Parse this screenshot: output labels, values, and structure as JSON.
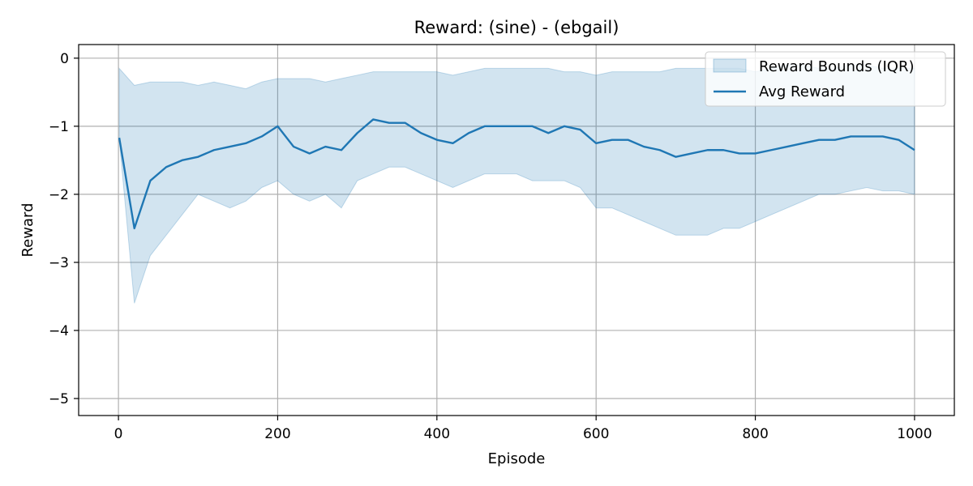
{
  "chart_data": {
    "type": "line",
    "title": "Reward: (sine) - (ebgail)",
    "xlabel": "Episode",
    "ylabel": "Reward",
    "xlim": [
      -50,
      1050
    ],
    "ylim": [
      -5.25,
      0.2
    ],
    "xticks": [
      0,
      200,
      400,
      600,
      800,
      1000
    ],
    "xtick_labels": [
      "0",
      "200",
      "400",
      "600",
      "800",
      "1000"
    ],
    "yticks": [
      0,
      -1,
      -2,
      -3,
      -4,
      -5
    ],
    "ytick_labels": [
      "0",
      "−1",
      "−2",
      "−3",
      "−4",
      "−5"
    ],
    "grid": true,
    "legend_position": "top-right",
    "colors": {
      "line": "#1f77b4",
      "band_fill": "#1f77b4",
      "grid": "#b0b0b0"
    },
    "x": [
      1,
      20,
      40,
      60,
      80,
      100,
      120,
      140,
      160,
      180,
      200,
      220,
      240,
      260,
      280,
      300,
      320,
      340,
      360,
      380,
      400,
      420,
      440,
      460,
      480,
      500,
      520,
      540,
      560,
      580,
      600,
      620,
      640,
      660,
      680,
      700,
      720,
      740,
      760,
      780,
      800,
      820,
      840,
      860,
      880,
      900,
      920,
      940,
      960,
      980,
      1000
    ],
    "series": [
      {
        "name": "Avg Reward",
        "kind": "line",
        "values": [
          -1.17,
          -2.5,
          -1.8,
          -1.6,
          -1.5,
          -1.45,
          -1.35,
          -1.3,
          -1.25,
          -1.15,
          -1.0,
          -1.3,
          -1.4,
          -1.3,
          -1.35,
          -1.1,
          -0.9,
          -0.95,
          -0.95,
          -1.1,
          -1.2,
          -1.25,
          -1.1,
          -1.0,
          -1.0,
          -1.0,
          -1.0,
          -1.1,
          -1.0,
          -1.05,
          -1.25,
          -1.2,
          -1.2,
          -1.3,
          -1.35,
          -1.45,
          -1.4,
          -1.35,
          -1.35,
          -1.4,
          -1.4,
          -1.35,
          -1.3,
          -1.25,
          -1.2,
          -1.2,
          -1.15,
          -1.15,
          -1.15,
          -1.2,
          -1.35
        ]
      },
      {
        "name": "Reward Bounds (IQR)",
        "kind": "band",
        "lower": [
          -1.2,
          -3.6,
          -2.9,
          -2.6,
          -2.3,
          -2.0,
          -2.1,
          -2.2,
          -2.1,
          -1.9,
          -1.8,
          -2.0,
          -2.1,
          -2.0,
          -2.2,
          -1.8,
          -1.7,
          -1.6,
          -1.6,
          -1.7,
          -1.8,
          -1.9,
          -1.8,
          -1.7,
          -1.7,
          -1.7,
          -1.8,
          -1.8,
          -1.8,
          -1.9,
          -2.2,
          -2.2,
          -2.3,
          -2.4,
          -2.5,
          -2.6,
          -2.6,
          -2.6,
          -2.5,
          -2.5,
          -2.4,
          -2.3,
          -2.2,
          -2.1,
          -2.0,
          -2.0,
          -1.95,
          -1.9,
          -1.95,
          -1.95,
          -2.0
        ],
        "upper": [
          -0.15,
          -0.4,
          -0.35,
          -0.35,
          -0.35,
          -0.4,
          -0.35,
          -0.4,
          -0.45,
          -0.35,
          -0.3,
          -0.3,
          -0.3,
          -0.35,
          -0.3,
          -0.25,
          -0.2,
          -0.2,
          -0.2,
          -0.2,
          -0.2,
          -0.25,
          -0.2,
          -0.15,
          -0.15,
          -0.15,
          -0.15,
          -0.15,
          -0.2,
          -0.2,
          -0.25,
          -0.2,
          -0.2,
          -0.2,
          -0.2,
          -0.15,
          -0.15,
          -0.15,
          -0.15,
          -0.15,
          -0.2,
          -0.15,
          -0.1,
          -0.1,
          -0.15,
          -0.15,
          -0.1,
          -0.1,
          -0.15,
          -0.15,
          -0.15
        ]
      }
    ]
  }
}
